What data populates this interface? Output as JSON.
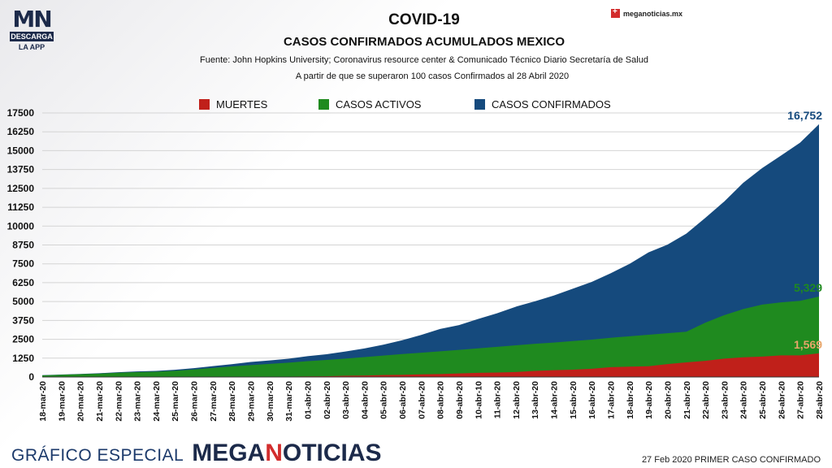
{
  "logo": {
    "mark": "MN",
    "bar": "DESCARGA",
    "sub": "LA APP"
  },
  "brand_top": "meganoticias.mx",
  "header": {
    "title": "COVID-19",
    "subtitle": "CASOS CONFIRMADOS ACUMULADOS MEXICO",
    "source": "Fuente: John Hopkins University; Coronavirus resource center & Comunicado Técnico Diario Secretaría de Salud",
    "note": "A partir de que se superaron 100 casos Confirmados al 28 Abril 2020"
  },
  "footer": {
    "left_small": "GRÁFICO ESPECIAL",
    "left_big_a": "MEGA",
    "left_big_b": "N",
    "left_big_c": "OTICIAS",
    "right": "27 Feb 2020 PRIMER CASO CONFIRMADO"
  },
  "chart_data": {
    "type": "area",
    "x": [
      "18-mar-20",
      "19-mar-20",
      "20-mar-20",
      "21-mar-20",
      "22-mar-20",
      "23-mar-20",
      "24-mar-20",
      "25-mar-20",
      "26-mar-20",
      "27-mar-20",
      "28-mar-20",
      "29-mar-20",
      "30-mar-20",
      "31-mar-20",
      "01-abr-20",
      "02-abr-20",
      "03-abr-20",
      "04-abr-20",
      "05-abr-20",
      "06-abr-20",
      "07-abr-20",
      "08-abr-20",
      "09-abr-20",
      "10-abr-10",
      "11-abr-20",
      "12-abr-20",
      "13-abr-20",
      "14-abr-20",
      "15-abr-20",
      "16-abr-20",
      "17-abr-20",
      "18-abr-20",
      "19-abr-20",
      "20-abr-20",
      "21-abr-20",
      "22-abr-20",
      "23-abr-20",
      "24-abr-20",
      "25-abr-20",
      "26-abr-20",
      "27-abr-20",
      "28-abr-20"
    ],
    "series": [
      {
        "name": "CASOS CONFIRMADOS",
        "color": "#154a7d",
        "values": [
          118,
          164,
          203,
          251,
          316,
          367,
          405,
          475,
          585,
          717,
          848,
          993,
          1094,
          1215,
          1378,
          1510,
          1688,
          1890,
          2143,
          2439,
          2785,
          3181,
          3441,
          3844,
          4219,
          4661,
          5014,
          5399,
          5847,
          6297,
          6875,
          7497,
          8261,
          8772,
          9501,
          10544,
          11633,
          12872,
          13842,
          14677,
          15529,
          16752
        ]
      },
      {
        "name": "CASOS ACTIVOS",
        "color": "#1f8a1f",
        "values": [
          110,
          150,
          185,
          225,
          280,
          320,
          350,
          410,
          500,
          600,
          700,
          790,
          870,
          950,
          1050,
          1130,
          1220,
          1320,
          1420,
          1520,
          1610,
          1700,
          1800,
          1900,
          2000,
          2100,
          2200,
          2280,
          2380,
          2480,
          2600,
          2700,
          2800,
          2900,
          3000,
          3600,
          4100,
          4500,
          4800,
          4950,
          5050,
          5329
        ]
      },
      {
        "name": "MUERTES",
        "color": "#c0201a",
        "values": [
          0,
          0,
          1,
          2,
          2,
          4,
          5,
          6,
          8,
          12,
          16,
          20,
          28,
          29,
          37,
          50,
          79,
          94,
          125,
          141,
          174,
          194,
          233,
          273,
          296,
          332,
          406,
          449,
          486,
          546,
          650,
          686,
          712,
          857,
          970,
          1069,
          1221,
          1305,
          1351,
          1434,
          1434,
          1569
        ]
      }
    ],
    "end_labels": {
      "confirmados": "16,752",
      "activos": "5,329",
      "muertes": "1,569"
    },
    "y_ticks": [
      0,
      1250,
      2500,
      3750,
      5000,
      6250,
      7500,
      8750,
      10000,
      11250,
      12500,
      13750,
      15000,
      16250,
      17500
    ],
    "ylim": [
      0,
      17500
    ],
    "grid": true,
    "legend": "top-center"
  }
}
